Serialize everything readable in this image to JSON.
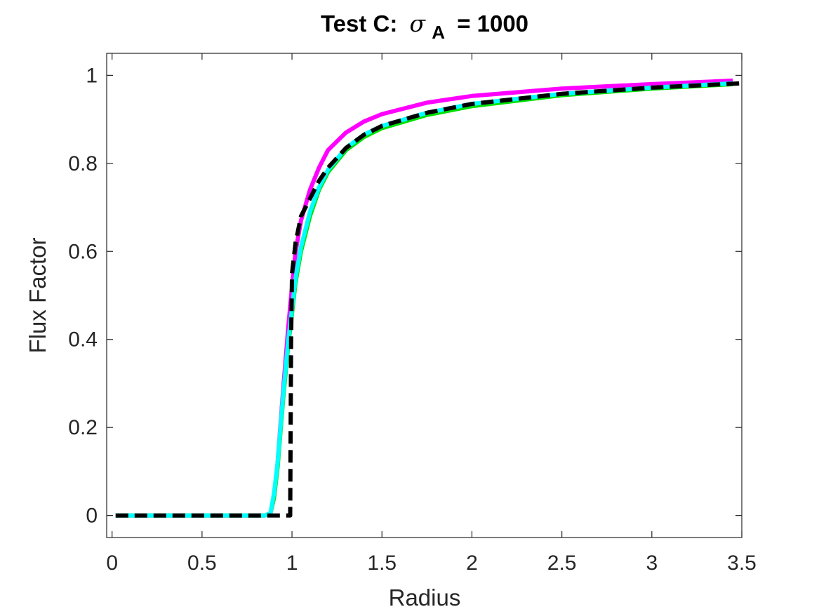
{
  "chart_data": {
    "type": "line",
    "title": "Test C:",
    "title_symbol": "σ",
    "title_subscript": "A",
    "title_value": "= 1000",
    "xlabel": "Radius",
    "ylabel": "Flux Factor",
    "xlim": [
      -0.03,
      3.5
    ],
    "ylim": [
      -0.05,
      1.05
    ],
    "xticks": [
      0,
      0.5,
      1,
      1.5,
      2,
      2.5,
      3,
      3.5
    ],
    "xtick_labels": [
      "0",
      "0.5",
      "1",
      "1.5",
      "2",
      "2.5",
      "3",
      "3.5"
    ],
    "yticks": [
      0,
      0.2,
      0.4,
      0.6,
      0.8,
      1
    ],
    "ytick_labels": [
      "0",
      "0.2",
      "0.4",
      "0.6",
      "0.8",
      "1"
    ],
    "grid": false,
    "series": [
      {
        "color": "#ff00ff",
        "style": "solid",
        "width": 6,
        "x": [
          0.02,
          0.85,
          0.88,
          0.9,
          0.92,
          0.95,
          0.98,
          1.0,
          1.02,
          1.05,
          1.1,
          1.15,
          1.2,
          1.3,
          1.4,
          1.5,
          1.75,
          2.0,
          2.5,
          3.0,
          3.45
        ],
        "y": [
          0,
          0,
          0.005,
          0.04,
          0.12,
          0.28,
          0.43,
          0.52,
          0.6,
          0.67,
          0.74,
          0.79,
          0.83,
          0.87,
          0.895,
          0.912,
          0.938,
          0.953,
          0.97,
          0.98,
          0.988
        ]
      },
      {
        "color": "#00e000",
        "style": "solid",
        "width": 6,
        "x": [
          0.02,
          0.85,
          0.88,
          0.9,
          0.92,
          0.95,
          0.98,
          1.0,
          1.02,
          1.05,
          1.1,
          1.15,
          1.2,
          1.3,
          1.4,
          1.5,
          1.75,
          2.0,
          2.5,
          3.0,
          3.45
        ],
        "y": [
          0,
          0,
          0.005,
          0.04,
          0.11,
          0.26,
          0.39,
          0.46,
          0.53,
          0.6,
          0.68,
          0.74,
          0.78,
          0.83,
          0.86,
          0.88,
          0.91,
          0.93,
          0.955,
          0.97,
          0.98
        ]
      },
      {
        "color": "#00ffff",
        "style": "solid",
        "width": 6,
        "x": [
          0.02,
          0.85,
          0.88,
          0.9,
          0.92,
          0.95,
          0.98,
          1.0,
          1.02,
          1.05,
          1.1,
          1.15,
          1.2,
          1.3,
          1.4,
          1.5,
          1.75,
          2.0,
          2.5,
          3.0,
          3.45
        ],
        "y": [
          0,
          0,
          0.005,
          0.05,
          0.12,
          0.27,
          0.4,
          0.47,
          0.54,
          0.61,
          0.69,
          0.745,
          0.785,
          0.835,
          0.865,
          0.885,
          0.915,
          0.935,
          0.958,
          0.972,
          0.982
        ]
      },
      {
        "color": "#000000",
        "style": "dashed",
        "width": 6,
        "x": [
          0.02,
          0.99,
          0.995,
          1.0,
          1.02,
          1.05,
          1.1,
          1.15,
          1.2,
          1.3,
          1.4,
          1.5,
          1.75,
          2.0,
          2.5,
          3.0,
          3.5
        ],
        "y": [
          0,
          0,
          0.4,
          0.55,
          0.62,
          0.68,
          0.72,
          0.76,
          0.79,
          0.835,
          0.865,
          0.885,
          0.915,
          0.935,
          0.958,
          0.972,
          0.982
        ]
      }
    ]
  }
}
